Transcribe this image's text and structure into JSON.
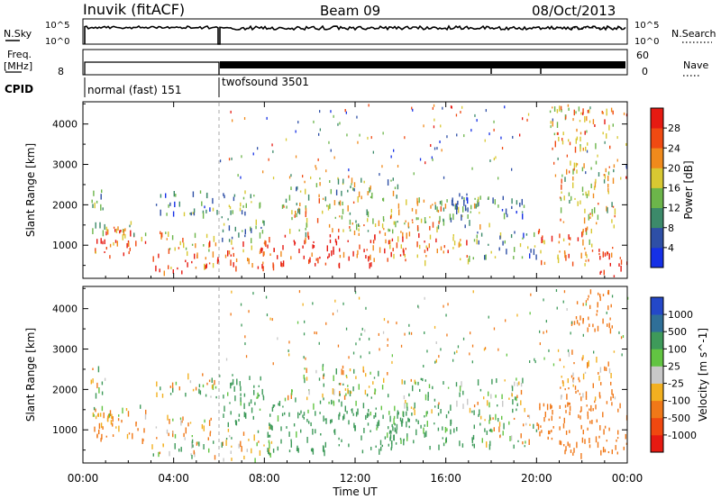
{
  "header": {
    "station": "Inuvik (fitACF)",
    "beam": "Beam 09",
    "date": "08/Oct/2013"
  },
  "top_panels": {
    "nsky_label": "N.Sky",
    "nsky_ticks": [
      "10^5",
      "10^0"
    ],
    "nsearch_ticks": [
      "10^5",
      "10^0"
    ],
    "nsearch_label": "N.Search",
    "freq_label_1": "Freq.",
    "freq_label_2": "[MHz]",
    "freq_ticks": [
      "8"
    ],
    "nave_ticks": [
      "60",
      "0"
    ],
    "nave_label": "Nave",
    "cpid_label": "CPID",
    "cpid_modes": [
      {
        "label": "normal (fast) 151",
        "start_hour": 0,
        "end_hour": 6
      },
      {
        "label": "twofsound 3501",
        "start_hour": 6,
        "end_hour": 24
      }
    ]
  },
  "chart_data": [
    {
      "type": "heatmap",
      "name": "power",
      "ylabel": "Slant Range [km]",
      "xlabel": "",
      "x_range_hours": [
        0,
        24
      ],
      "ylim_km": [
        180,
        4550
      ],
      "yticks": [
        1000,
        2000,
        3000,
        4000
      ],
      "colorbar_label": "Power [dB]",
      "colorbar_ticks": [
        "4",
        "8",
        "12",
        "16",
        "20",
        "24",
        "28"
      ],
      "colorbar_colors": [
        "#1530e6",
        "#2e4fa6",
        "#3c8a6a",
        "#6cb54a",
        "#d8c832",
        "#f08a1c",
        "#f04a12",
        "#e61a12"
      ],
      "regions": [
        {
          "t0": 0.3,
          "t1": 1.0,
          "r0": 1800,
          "r1": 2500,
          "v": 10
        },
        {
          "t0": 0.3,
          "t1": 2.8,
          "r0": 750,
          "r1": 1500,
          "v": 26
        },
        {
          "t0": 0.3,
          "t1": 2.8,
          "r0": 1300,
          "r1": 1600,
          "v": 14
        },
        {
          "t0": 3.2,
          "t1": 4.0,
          "r0": 800,
          "r1": 1400,
          "v": 20
        },
        {
          "t0": 3.0,
          "t1": 6.0,
          "r0": 350,
          "r1": 800,
          "v": 27
        },
        {
          "t0": 4.0,
          "t1": 5.9,
          "r0": 800,
          "r1": 1350,
          "v": 22
        },
        {
          "t0": 3.2,
          "t1": 6.0,
          "r0": 1800,
          "r1": 2400,
          "v": 9
        },
        {
          "t0": 6.1,
          "t1": 8.0,
          "r0": 400,
          "r1": 1100,
          "v": 24
        },
        {
          "t0": 6.1,
          "t1": 8.0,
          "r0": 1100,
          "r1": 2400,
          "v": 12
        },
        {
          "t0": 7.8,
          "t1": 13.0,
          "r0": 500,
          "r1": 1300,
          "v": 29
        },
        {
          "t0": 8.5,
          "t1": 16.0,
          "r0": 1300,
          "r1": 2200,
          "v": 18
        },
        {
          "t0": 9.0,
          "t1": 14.0,
          "r0": 2200,
          "r1": 2700,
          "v": 15
        },
        {
          "t0": 13.0,
          "t1": 17.0,
          "r0": 600,
          "r1": 1300,
          "v": 24
        },
        {
          "t0": 15.5,
          "t1": 18.0,
          "r0": 1500,
          "r1": 2200,
          "v": 13
        },
        {
          "t0": 17.0,
          "t1": 20.0,
          "r0": 700,
          "r1": 1350,
          "v": 11
        },
        {
          "t0": 16.0,
          "t1": 19.5,
          "r0": 1700,
          "r1": 2300,
          "v": 7
        },
        {
          "t0": 20.0,
          "t1": 22.5,
          "r0": 500,
          "r1": 1500,
          "v": 21
        },
        {
          "t0": 21.0,
          "t1": 23.5,
          "r0": 1500,
          "r1": 3100,
          "v": 18
        },
        {
          "t0": 22.5,
          "t1": 24.0,
          "r0": 250,
          "r1": 1000,
          "v": 27
        },
        {
          "t0": 20.5,
          "t1": 23.5,
          "r0": 3400,
          "r1": 4500,
          "v": 22
        }
      ]
    },
    {
      "type": "heatmap",
      "name": "velocity",
      "ylabel": "Slant Range [km]",
      "xlabel": "Time UT",
      "x_range_hours": [
        0,
        24
      ],
      "xticks": [
        "00:00",
        "04:00",
        "08:00",
        "12:00",
        "16:00",
        "20:00",
        "00:00"
      ],
      "ylim_km": [
        180,
        4550
      ],
      "yticks": [
        1000,
        2000,
        3000,
        4000
      ],
      "colorbar_label": "Velocity [m s^-1]",
      "colorbar_ticks": [
        "1000",
        "500",
        "100",
        "25",
        "-25",
        "-100",
        "-500",
        "-1000"
      ],
      "colorbar_colors": [
        "#2448c8",
        "#2f6f98",
        "#3e9a5a",
        "#62c442",
        "#c8c8c8",
        "#f2b020",
        "#f07818",
        "#f04810",
        "#e61a12"
      ],
      "regions": [
        {
          "t0": 0.3,
          "t1": 1.0,
          "r0": 1800,
          "r1": 2600,
          "v": 0
        },
        {
          "t0": 0.3,
          "t1": 2.8,
          "r0": 750,
          "r1": 1550,
          "v": -180
        },
        {
          "t0": 0.3,
          "t1": 2.8,
          "r0": 1350,
          "r1": 1650,
          "v": 60
        },
        {
          "t0": 3.2,
          "t1": 4.0,
          "r0": 800,
          "r1": 1400,
          "v": -150
        },
        {
          "t0": 3.0,
          "t1": 6.0,
          "r0": 350,
          "r1": 800,
          "v": 60
        },
        {
          "t0": 4.0,
          "t1": 5.9,
          "r0": 800,
          "r1": 1350,
          "v": -120
        },
        {
          "t0": 3.2,
          "t1": 6.0,
          "r0": 1800,
          "r1": 2400,
          "v": 0
        },
        {
          "t0": 6.1,
          "t1": 8.3,
          "r0": 300,
          "r1": 1100,
          "v": 0
        },
        {
          "t0": 6.1,
          "t1": 8.0,
          "r0": 1100,
          "r1": 2400,
          "v": 250
        },
        {
          "t0": 8.0,
          "t1": 14.5,
          "r0": 500,
          "r1": 1800,
          "v": 250
        },
        {
          "t0": 9.0,
          "t1": 13.5,
          "r0": 1800,
          "r1": 2600,
          "v": 0
        },
        {
          "t0": 13.5,
          "t1": 18.0,
          "r0": 600,
          "r1": 1500,
          "v": 250
        },
        {
          "t0": 14.0,
          "t1": 19.5,
          "r0": 1500,
          "r1": 2300,
          "v": 60
        },
        {
          "t0": 17.5,
          "t1": 20.0,
          "r0": 600,
          "r1": 1400,
          "v": 0
        },
        {
          "t0": 20.0,
          "t1": 24.0,
          "r0": 400,
          "r1": 1700,
          "v": -300
        },
        {
          "t0": 21.0,
          "t1": 23.5,
          "r0": 1700,
          "r1": 3000,
          "v": -150
        },
        {
          "t0": 21.5,
          "t1": 23.5,
          "r0": 3500,
          "r1": 4500,
          "v": -300
        }
      ]
    }
  ]
}
